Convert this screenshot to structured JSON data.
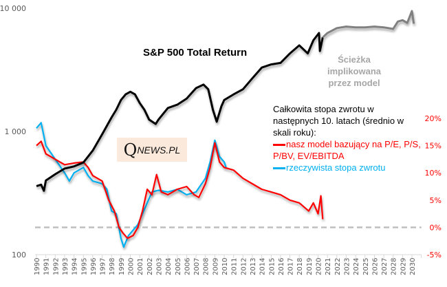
{
  "chart_data": {
    "type": "line",
    "title": "S&P 500 Total Return",
    "xlabel": "",
    "x_ticks": [
      "1990",
      "1991",
      "1992",
      "1993",
      "1994",
      "1995",
      "1996",
      "1997",
      "1998",
      "1999",
      "2000",
      "2001",
      "2002",
      "2003",
      "2004",
      "2005",
      "2006",
      "2007",
      "2008",
      "2009",
      "2010",
      "2011",
      "2012",
      "2013",
      "2014",
      "2015",
      "2016",
      "2017",
      "2018",
      "2019",
      "2020",
      "2021",
      "2022",
      "2023",
      "2024",
      "2025",
      "2026",
      "2027",
      "2028",
      "2029",
      "2030"
    ],
    "xlim": [
      1990,
      2031
    ],
    "left_axis": {
      "scale": "log",
      "ylim": [
        100,
        10000
      ],
      "ticks": [
        100,
        1000,
        10000
      ],
      "tick_labels": [
        "100",
        "1 000",
        "10 000"
      ]
    },
    "right_axis": {
      "ylim": [
        -5,
        20
      ],
      "ticks": [
        -5,
        0,
        5,
        10,
        15,
        20
      ],
      "tick_labels": [
        "-5%",
        "0%",
        "5%",
        "10%",
        "15%",
        "20%"
      ],
      "color": "#ff0000"
    },
    "annotation_implied": [
      "Ścieżka implikowana",
      "przez model"
    ],
    "legend": {
      "heading": "Całkowita stopa zwrotu w następnych 10.  latach (średnio w skali roku):",
      "model_label": "nasz model bazujący na P/E, P/S, P/BV, EV/EBITDA",
      "actual_label": "rzeczywista stopa zwrotu",
      "placement": "right"
    },
    "watermark": {
      "q": "Q",
      "rest": "NEWS.PL"
    },
    "series": [
      {
        "name": "S&P 500 Total Return",
        "axis": "left",
        "color": "#000000",
        "x": [
          1990,
          1990.5,
          1990.8,
          1991,
          1992,
          1993,
          1994,
          1995,
          1996,
          1997,
          1998,
          1998.5,
          1999,
          1999.5,
          2000,
          2000.5,
          2001,
          2001.5,
          2002,
          2002.7,
          2003,
          2004,
          2005,
          2006,
          2007,
          2007.8,
          2008.3,
          2008.8,
          2009.2,
          2009.7,
          2010,
          2011,
          2012,
          2013,
          2014,
          2015,
          2016,
          2017,
          2018,
          2018.9,
          2019.5,
          2020.1,
          2020.2,
          2020.5
        ],
        "y": [
          360,
          370,
          330,
          400,
          450,
          500,
          520,
          560,
          700,
          950,
          1300,
          1500,
          1800,
          2000,
          2100,
          2000,
          1700,
          1500,
          1250,
          1150,
          1250,
          1550,
          1650,
          1850,
          2250,
          2400,
          2200,
          1500,
          1200,
          1600,
          1800,
          2000,
          2200,
          2700,
          3300,
          3500,
          3600,
          4300,
          5000,
          4300,
          5500,
          6300,
          4500,
          5800
        ]
      },
      {
        "name": "Ścieżka implikowana przez model",
        "axis": "left",
        "color": "#808080",
        "x": [
          2020.5,
          2021,
          2022,
          2023,
          2024,
          2025,
          2026,
          2027,
          2028,
          2028.5,
          2029,
          2029.5,
          2030,
          2030.2
        ],
        "y": [
          5800,
          6300,
          6900,
          7100,
          7000,
          7000,
          7100,
          7000,
          6800,
          7800,
          8000,
          7600,
          9500,
          7500
        ]
      },
      {
        "name": "nasz model bazujący na P/E, P/S, P/BV, EV/EBITDA",
        "axis": "right",
        "color": "#ff0000",
        "x": [
          1990,
          1990.5,
          1991,
          1992,
          1993,
          1994,
          1995,
          1995.5,
          1996,
          1997,
          1997.7,
          1998.3,
          1998.8,
          1999.2,
          1999.7,
          2000.3,
          2000.8,
          2001.3,
          2001.8,
          2002.3,
          2002.8,
          2003.3,
          2004,
          2005,
          2006,
          2006.8,
          2007.3,
          2008,
          2008.5,
          2009,
          2009.5,
          2010,
          2011,
          2012,
          2013,
          2014,
          2015,
          2016,
          2017,
          2018,
          2019,
          2019.5,
          2020,
          2020.3,
          2020.5
        ],
        "y": [
          15,
          15.8,
          13.5,
          12.5,
          11.5,
          11.8,
          12,
          11,
          9.5,
          8.5,
          5,
          3,
          0,
          -1,
          -2,
          -1.5,
          0,
          3,
          7,
          6,
          9.7,
          6.5,
          6,
          7,
          7.5,
          6,
          5.5,
          8,
          11,
          15.5,
          12,
          11,
          10.5,
          9,
          8,
          7,
          6.5,
          6,
          5,
          4.5,
          3,
          4.5,
          2.5,
          5.8,
          1.5
        ]
      },
      {
        "name": "rzeczywista stopa zwrotu",
        "axis": "right",
        "color": "#00b0f0",
        "x": [
          1990,
          1990.5,
          1991,
          1992,
          1993,
          1993.5,
          1994,
          1995,
          1995.5,
          1996,
          1997,
          1997.5,
          1998,
          1998.5,
          1999,
          1999.3,
          1999.8,
          2000.3,
          2000.8,
          2001.3,
          2001.8,
          2002.3,
          2003,
          2004,
          2005,
          2006,
          2007,
          2008,
          2008.5,
          2009,
          2009.5,
          2010,
          2010.2
        ],
        "y": [
          18.2,
          19.2,
          15,
          12.5,
          10,
          8.5,
          10,
          11,
          9.5,
          8.5,
          8,
          7,
          3,
          2.5,
          -2,
          -3.6,
          -1.5,
          -0.5,
          0.5,
          2.5,
          4.5,
          6.5,
          6.8,
          6.5,
          7,
          6,
          6.5,
          9,
          12,
          16,
          13,
          12,
          11
        ]
      }
    ],
    "reference_line": {
      "axis": "right",
      "value": 0,
      "style": "dashed",
      "color": "#bfbfbf"
    }
  }
}
